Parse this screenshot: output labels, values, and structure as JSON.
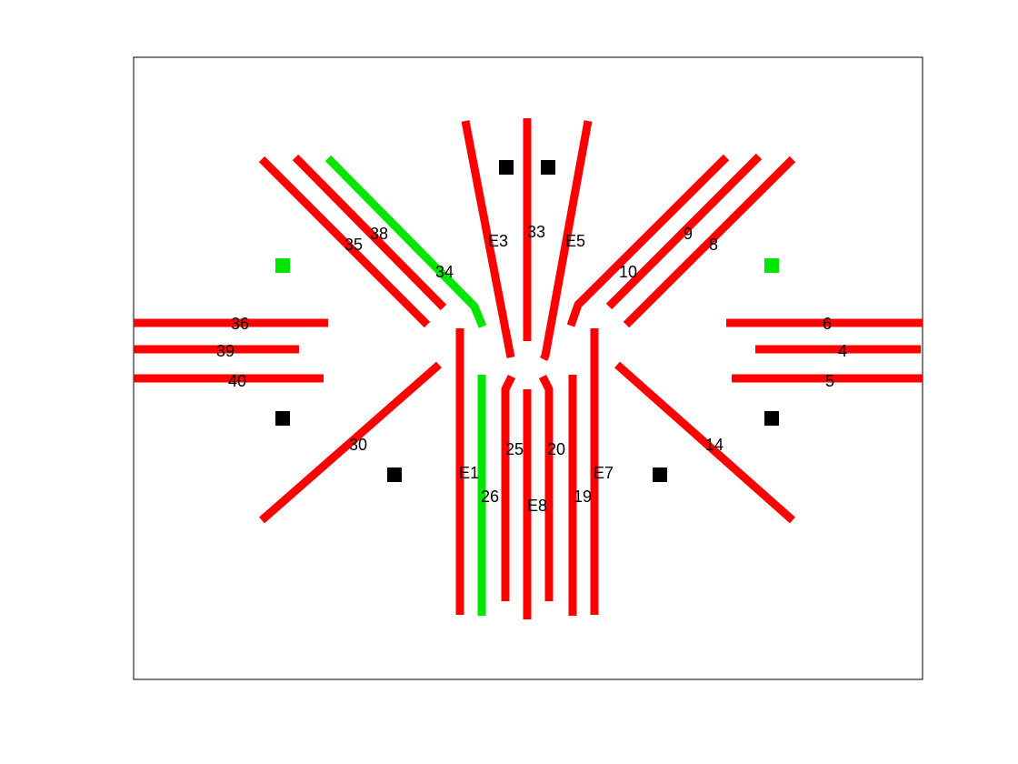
{
  "colors": {
    "inactive": "#ff0000",
    "active": "#00e600",
    "marker_black": "#000000",
    "frame": "#000000",
    "background": "#ffffff"
  },
  "labels": {
    "l36": "36",
    "l39": "39",
    "l40": "40",
    "l35": "35",
    "l38": "38",
    "l34": "34",
    "lE3": "E3",
    "l33": "33",
    "lE5": "E5",
    "l10": "10",
    "l9": "9",
    "l8": "8",
    "l6": "6",
    "l4": "4",
    "l5": "5",
    "l30": "30",
    "lE1": "E1",
    "l26": "26",
    "l25": "25",
    "lE8": "E8",
    "l20": "20",
    "l19": "19",
    "lE7": "E7",
    "l14": "14"
  },
  "tracks": [
    {
      "name": "track-36",
      "state": "inactive"
    },
    {
      "name": "track-39",
      "state": "inactive"
    },
    {
      "name": "track-40",
      "state": "inactive"
    },
    {
      "name": "track-35",
      "state": "inactive"
    },
    {
      "name": "track-38",
      "state": "inactive"
    },
    {
      "name": "track-34",
      "state": "active"
    },
    {
      "name": "track-E3",
      "state": "inactive"
    },
    {
      "name": "track-33",
      "state": "inactive"
    },
    {
      "name": "track-E5",
      "state": "inactive"
    },
    {
      "name": "track-10",
      "state": "inactive"
    },
    {
      "name": "track-9",
      "state": "inactive"
    },
    {
      "name": "track-8",
      "state": "inactive"
    },
    {
      "name": "track-6",
      "state": "inactive"
    },
    {
      "name": "track-4",
      "state": "inactive"
    },
    {
      "name": "track-5",
      "state": "inactive"
    },
    {
      "name": "track-30",
      "state": "inactive"
    },
    {
      "name": "track-E1",
      "state": "inactive"
    },
    {
      "name": "track-26",
      "state": "active"
    },
    {
      "name": "track-25",
      "state": "inactive"
    },
    {
      "name": "track-E8",
      "state": "inactive"
    },
    {
      "name": "track-20",
      "state": "inactive"
    },
    {
      "name": "track-19",
      "state": "inactive"
    },
    {
      "name": "track-E7",
      "state": "inactive"
    },
    {
      "name": "track-14",
      "state": "inactive"
    }
  ],
  "markers": [
    {
      "name": "marker-top-left",
      "state": "black"
    },
    {
      "name": "marker-top-right",
      "state": "black"
    },
    {
      "name": "marker-left-upper",
      "state": "green"
    },
    {
      "name": "marker-right-upper",
      "state": "green"
    },
    {
      "name": "marker-left-lower",
      "state": "black"
    },
    {
      "name": "marker-right-lower",
      "state": "black"
    },
    {
      "name": "marker-bottom-left",
      "state": "black"
    },
    {
      "name": "marker-bottom-right",
      "state": "black"
    }
  ]
}
